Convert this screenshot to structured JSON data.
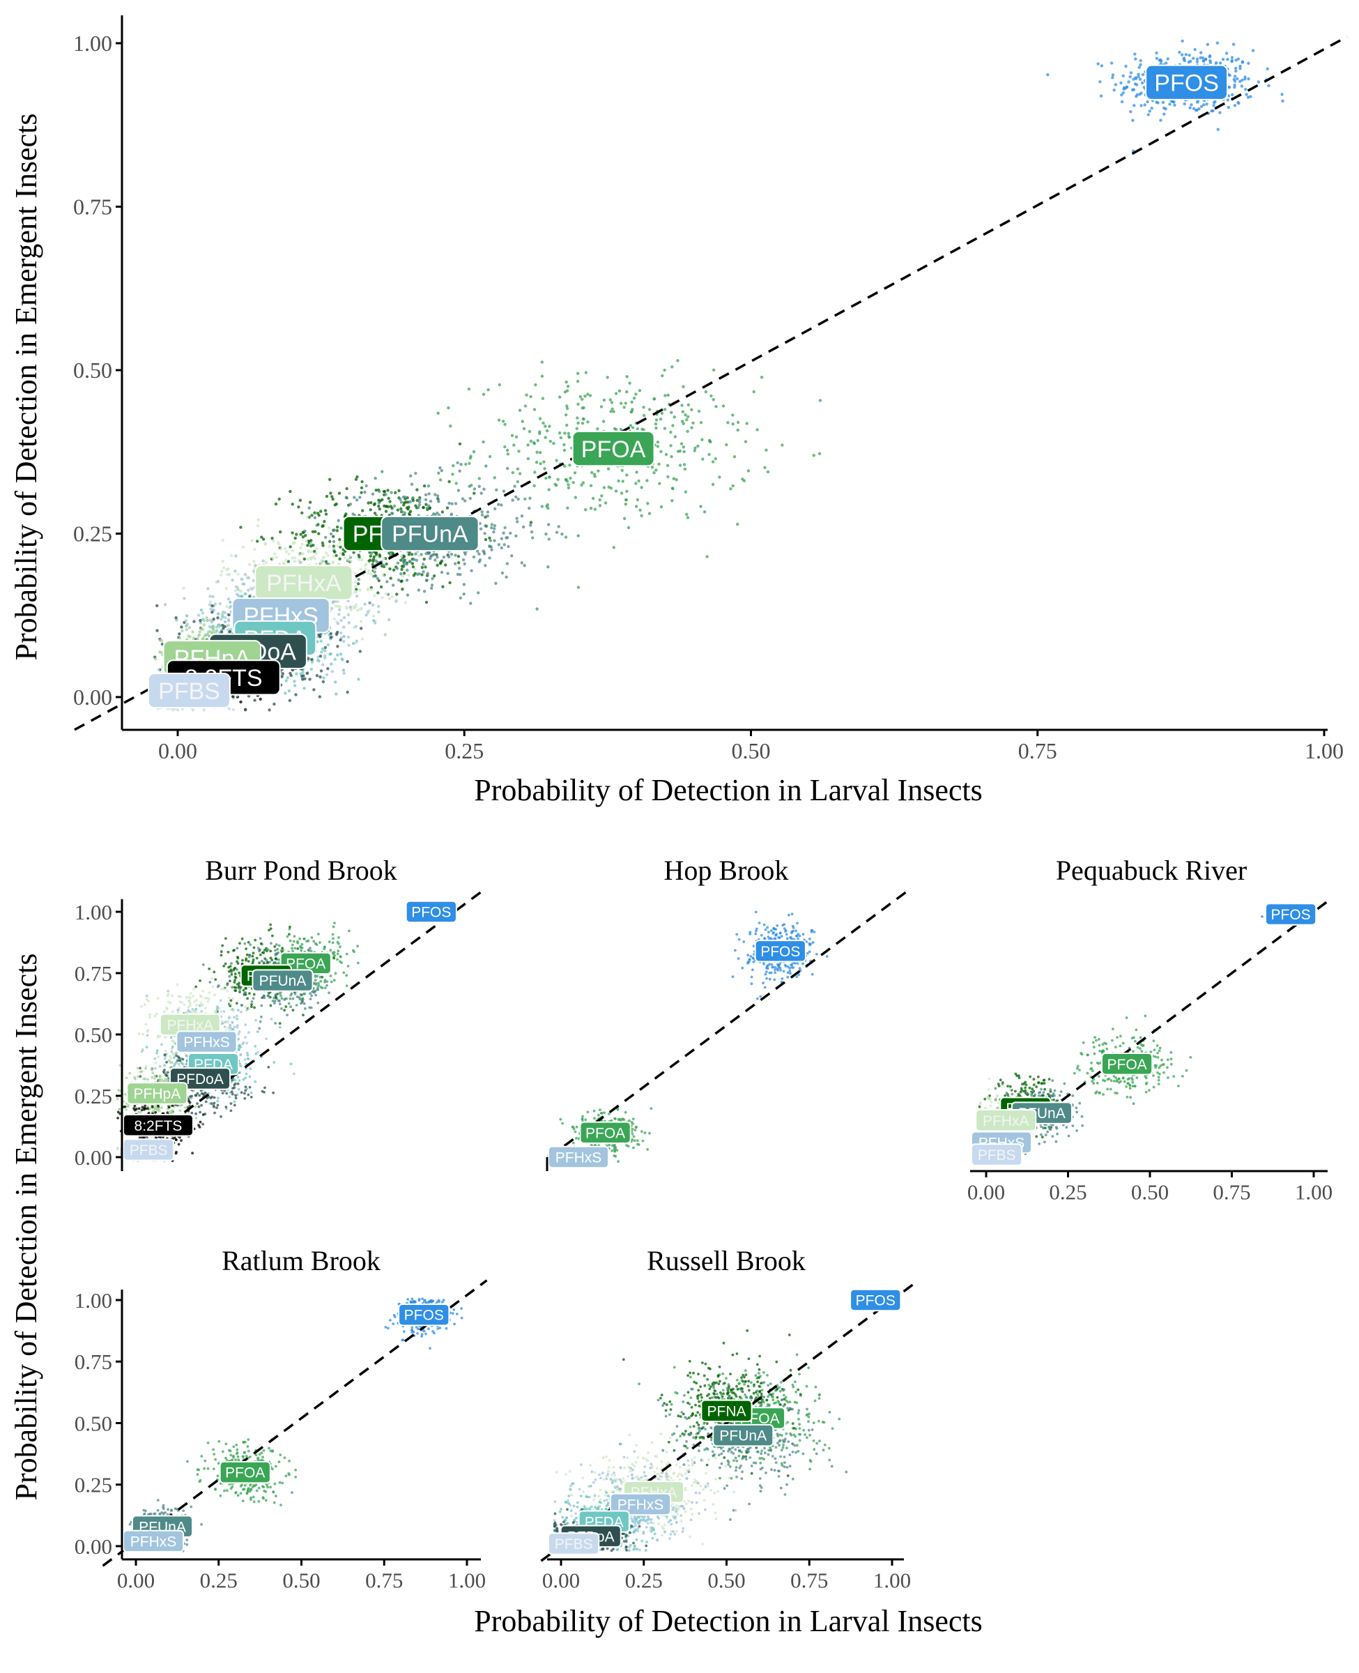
{
  "chart_data": [
    {
      "panel_id": "overall",
      "type": "scatter",
      "title": "",
      "xlabel": "Probability of Detection in Larval Insects",
      "ylabel": "Probability of Detection in Emergent Insects",
      "xlim": [
        0,
        1
      ],
      "ylim": [
        0,
        1
      ],
      "xticks": [
        "0.00",
        "0.25",
        "0.50",
        "0.75",
        "1.00"
      ],
      "yticks": [
        "0.00",
        "0.25",
        "0.50",
        "0.75",
        "1.00"
      ],
      "reference_line": "y = x, dashed",
      "grid": false,
      "legend": "none",
      "series": [
        {
          "name": "PFOS",
          "color": "#2f8ee6",
          "x": 0.88,
          "y": 0.94,
          "sx": 0.03,
          "sy": 0.025
        },
        {
          "name": "PFOA",
          "color": "#3aa655",
          "x": 0.38,
          "y": 0.38,
          "sx": 0.06,
          "sy": 0.055
        },
        {
          "name": "PFNA",
          "color": "#006400",
          "x": 0.18,
          "y": 0.25,
          "sx": 0.04,
          "sy": 0.04
        },
        {
          "name": "PFUnA",
          "color": "#4e8a88",
          "x": 0.22,
          "y": 0.25,
          "sx": 0.045,
          "sy": 0.04
        },
        {
          "name": "PFHxA",
          "color": "#cde8c4",
          "x": 0.11,
          "y": 0.175,
          "sx": 0.035,
          "sy": 0.035
        },
        {
          "name": "PFHxS",
          "color": "#a2c4de",
          "x": 0.09,
          "y": 0.125,
          "sx": 0.035,
          "sy": 0.035
        },
        {
          "name": "PFDA",
          "color": "#6fc7c3",
          "x": 0.085,
          "y": 0.09,
          "sx": 0.03,
          "sy": 0.03
        },
        {
          "name": "PFDoA",
          "color": "#2f4f4f",
          "x": 0.07,
          "y": 0.07,
          "sx": 0.03,
          "sy": 0.03
        },
        {
          "name": "PFHpA",
          "color": "#9fd493",
          "x": 0.03,
          "y": 0.06,
          "sx": 0.02,
          "sy": 0.025
        },
        {
          "name": "8:2FTS",
          "color": "#000000",
          "x": 0.04,
          "y": 0.03,
          "sx": 0.015,
          "sy": 0.015
        },
        {
          "name": "PFBS",
          "color": "#c6d9ee",
          "x": 0.01,
          "y": 0.01,
          "sx": 0.015,
          "sy": 0.015
        }
      ]
    },
    {
      "panel_id": "burr-pond-brook",
      "type": "scatter",
      "title": "Burr Pond Brook",
      "xlim": [
        0,
        1
      ],
      "ylim": [
        0,
        1
      ],
      "yticks": [
        "0.00",
        "0.25",
        "0.50",
        "0.75",
        "1.00"
      ],
      "reference_line": "y = x, dashed",
      "series": [
        {
          "name": "PFOS",
          "color": "#2f8ee6",
          "x": 0.93,
          "y": 1.0,
          "sx": 0.02,
          "sy": 0.003
        },
        {
          "name": "PFOA",
          "color": "#3aa655",
          "x": 0.55,
          "y": 0.79,
          "sx": 0.07,
          "sy": 0.06
        },
        {
          "name": "PFNA",
          "color": "#006400",
          "x": 0.43,
          "y": 0.74,
          "sx": 0.07,
          "sy": 0.07
        },
        {
          "name": "PFUnA",
          "color": "#4e8a88",
          "x": 0.48,
          "y": 0.72,
          "sx": 0.07,
          "sy": 0.07
        },
        {
          "name": "PFHxA",
          "color": "#cde8c4",
          "x": 0.2,
          "y": 0.54,
          "sx": 0.07,
          "sy": 0.08
        },
        {
          "name": "PFHxS",
          "color": "#a2c4de",
          "x": 0.25,
          "y": 0.47,
          "sx": 0.07,
          "sy": 0.08
        },
        {
          "name": "PFDA",
          "color": "#6fc7c3",
          "x": 0.27,
          "y": 0.38,
          "sx": 0.07,
          "sy": 0.07
        },
        {
          "name": "PFDoA",
          "color": "#2f4f4f",
          "x": 0.23,
          "y": 0.32,
          "sx": 0.07,
          "sy": 0.07
        },
        {
          "name": "PFHpA",
          "color": "#9fd493",
          "x": 0.1,
          "y": 0.26,
          "sx": 0.05,
          "sy": 0.06
        },
        {
          "name": "8:2FTS",
          "color": "#000000",
          "x": 0.1,
          "y": 0.13,
          "sx": 0.05,
          "sy": 0.05
        },
        {
          "name": "PFBS",
          "color": "#c6d9ee",
          "x": 0.06,
          "y": 0.03,
          "sx": 0.03,
          "sy": 0.02
        }
      ]
    },
    {
      "panel_id": "hop-brook",
      "type": "scatter",
      "title": "Hop Brook",
      "xlim": [
        0,
        1
      ],
      "ylim": [
        0,
        1
      ],
      "reference_line": "y = x, dashed",
      "series": [
        {
          "name": "PFOS",
          "color": "#2f8ee6",
          "x": 0.7,
          "y": 0.84,
          "sx": 0.05,
          "sy": 0.06
        },
        {
          "name": "PFOA",
          "color": "#3aa655",
          "x": 0.17,
          "y": 0.1,
          "sx": 0.05,
          "sy": 0.04
        },
        {
          "name": "PFHxS",
          "color": "#a2c4de",
          "x": 0.06,
          "y": 0.0,
          "sx": 0.02,
          "sy": 0.005
        }
      ]
    },
    {
      "panel_id": "pequabuck-river",
      "type": "scatter",
      "title": "Pequabuck River",
      "xlim": [
        0,
        1
      ],
      "ylim": [
        0,
        1
      ],
      "xticks": [
        "0.00",
        "0.25",
        "0.50",
        "0.75",
        "1.00"
      ],
      "reference_line": "y = x, dashed",
      "series": [
        {
          "name": "PFOS",
          "color": "#2f8ee6",
          "x": 0.93,
          "y": 0.99,
          "sx": 0.03,
          "sy": 0.005
        },
        {
          "name": "PFOA",
          "color": "#3aa655",
          "x": 0.43,
          "y": 0.38,
          "sx": 0.07,
          "sy": 0.06
        },
        {
          "name": "PFNA",
          "color": "#006400",
          "x": 0.12,
          "y": 0.2,
          "sx": 0.05,
          "sy": 0.06
        },
        {
          "name": "PFUnA",
          "color": "#4e8a88",
          "x": 0.17,
          "y": 0.18,
          "sx": 0.05,
          "sy": 0.05
        },
        {
          "name": "PFHxA",
          "color": "#cde8c4",
          "x": 0.06,
          "y": 0.15,
          "sx": 0.04,
          "sy": 0.05
        },
        {
          "name": "PFHxS",
          "color": "#a2c4de",
          "x": 0.04,
          "y": 0.06,
          "sx": 0.03,
          "sy": 0.03
        },
        {
          "name": "PFBS",
          "color": "#c6d9ee",
          "x": 0.03,
          "y": 0.01,
          "sx": 0.02,
          "sy": 0.01
        }
      ]
    },
    {
      "panel_id": "ratlum-brook",
      "type": "scatter",
      "title": "Ratlum Brook",
      "xlim": [
        0,
        1
      ],
      "ylim": [
        0,
        1
      ],
      "yticks": [
        "0.00",
        "0.25",
        "0.50",
        "0.75",
        "1.00"
      ],
      "xticks": [
        "0.00",
        "0.25",
        "0.50",
        "0.75",
        "1.00"
      ],
      "reference_line": "y = x, dashed",
      "series": [
        {
          "name": "PFOS",
          "color": "#2f8ee6",
          "x": 0.87,
          "y": 0.94,
          "sx": 0.04,
          "sy": 0.04
        },
        {
          "name": "PFOA",
          "color": "#3aa655",
          "x": 0.33,
          "y": 0.3,
          "sx": 0.06,
          "sy": 0.06
        },
        {
          "name": "PFUnA",
          "color": "#4e8a88",
          "x": 0.08,
          "y": 0.08,
          "sx": 0.04,
          "sy": 0.04
        },
        {
          "name": "PFHxS",
          "color": "#a2c4de",
          "x": 0.03,
          "y": 0.02,
          "sx": 0.03,
          "sy": 0.02
        }
      ]
    },
    {
      "panel_id": "russell-brook",
      "type": "scatter",
      "title": "Russell Brook",
      "xlim": [
        0,
        1
      ],
      "ylim": [
        0,
        1
      ],
      "xticks": [
        "0.00",
        "0.25",
        "0.50",
        "0.75",
        "1.00"
      ],
      "reference_line": "y = x, dashed",
      "series": [
        {
          "name": "PFOS",
          "color": "#2f8ee6",
          "x": 0.95,
          "y": 1.0,
          "sx": 0.02,
          "sy": 0.003
        },
        {
          "name": "PFOA",
          "color": "#3aa655",
          "x": 0.6,
          "y": 0.52,
          "sx": 0.1,
          "sy": 0.1
        },
        {
          "name": "PFNA",
          "color": "#006400",
          "x": 0.5,
          "y": 0.55,
          "sx": 0.09,
          "sy": 0.1
        },
        {
          "name": "PFUnA",
          "color": "#4e8a88",
          "x": 0.55,
          "y": 0.45,
          "sx": 0.1,
          "sy": 0.1
        },
        {
          "name": "PFHxA",
          "color": "#cde8c4",
          "x": 0.28,
          "y": 0.22,
          "sx": 0.1,
          "sy": 0.08
        },
        {
          "name": "PFHxS",
          "color": "#a2c4de",
          "x": 0.24,
          "y": 0.17,
          "sx": 0.09,
          "sy": 0.08
        },
        {
          "name": "PFDA",
          "color": "#6fc7c3",
          "x": 0.13,
          "y": 0.1,
          "sx": 0.07,
          "sy": 0.06
        },
        {
          "name": "PFDoA",
          "color": "#2f4f4f",
          "x": 0.09,
          "y": 0.04,
          "sx": 0.06,
          "sy": 0.04
        },
        {
          "name": "PFBS",
          "color": "#c6d9ee",
          "x": 0.02,
          "y": 0.01,
          "sx": 0.02,
          "sy": 0.01
        }
      ]
    }
  ],
  "shared_axes": {
    "xlabel": "Probability of Detection in Larval Insects",
    "ylabel": "Probability of Detection in Emergent Insects"
  }
}
